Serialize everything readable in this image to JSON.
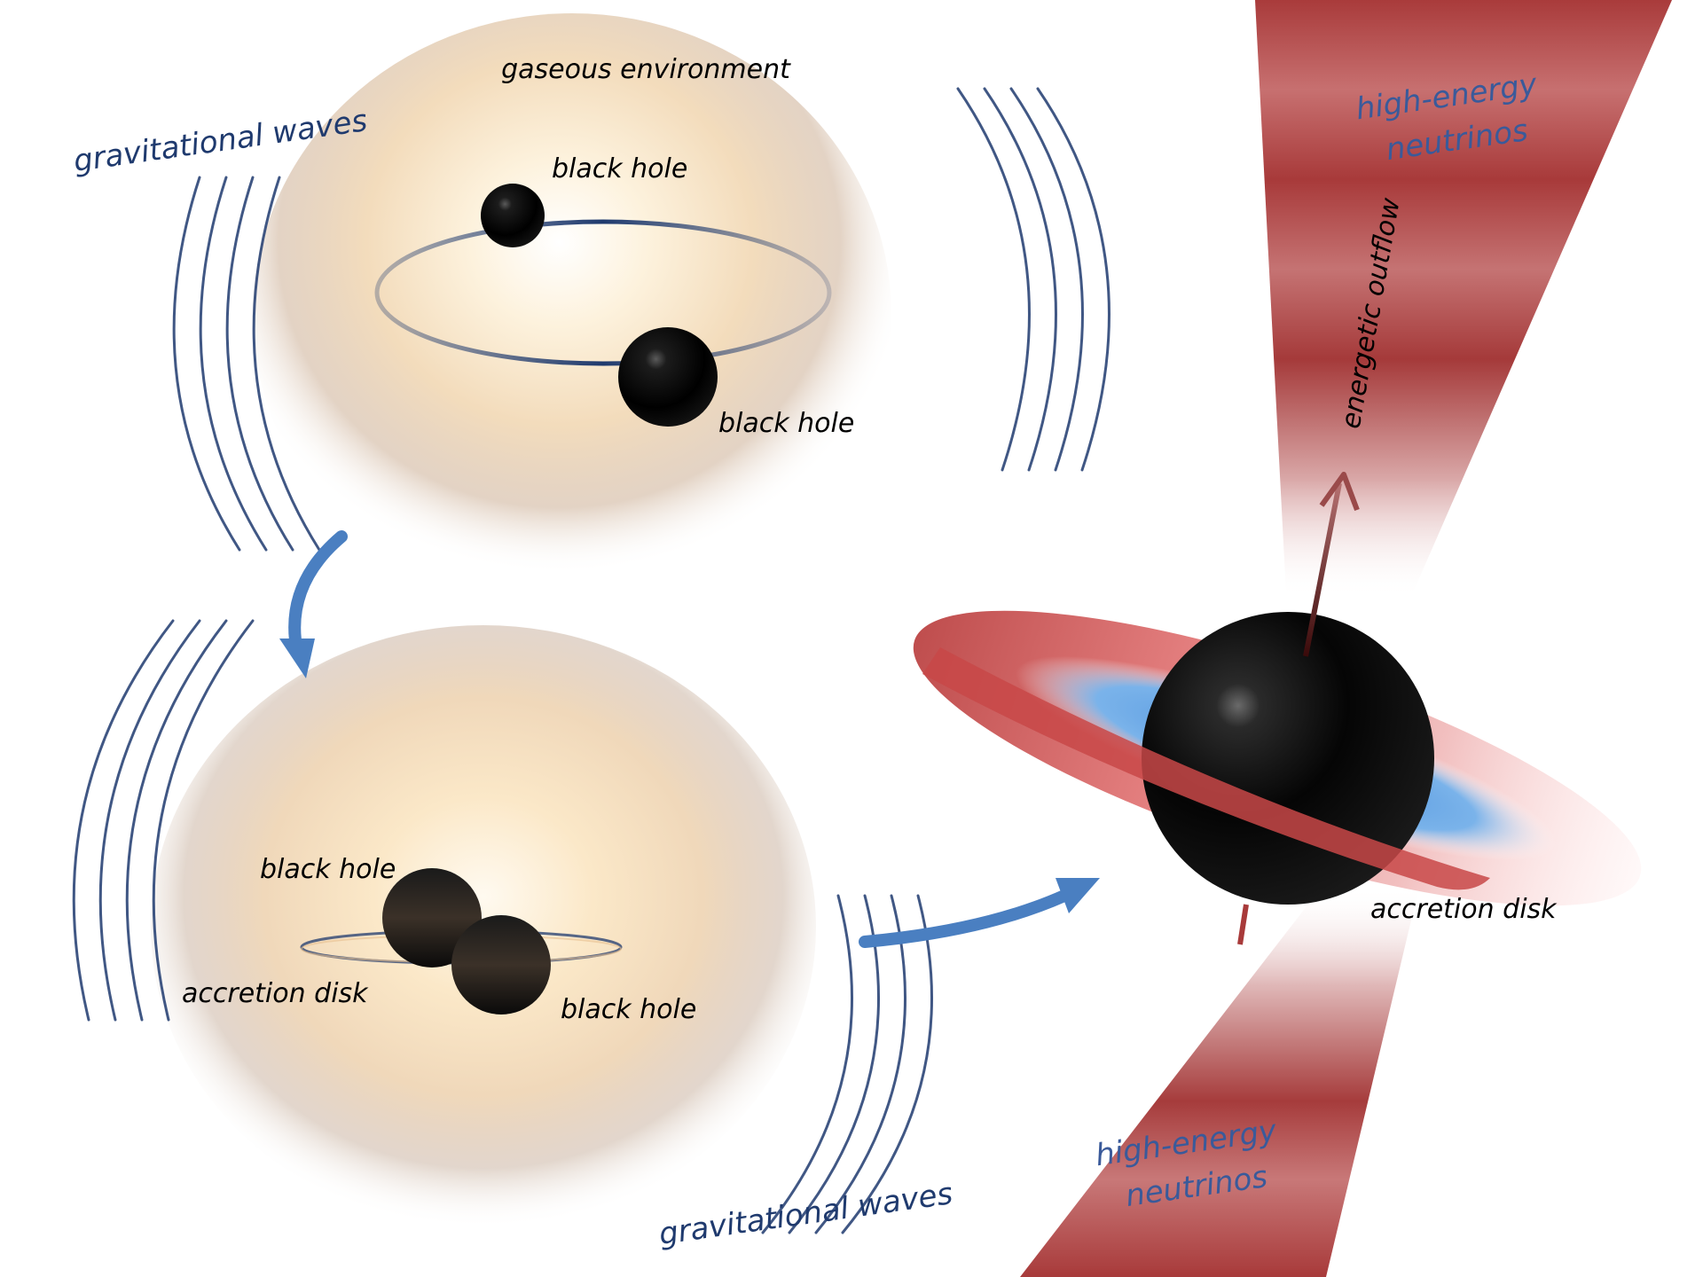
{
  "colors": {
    "wave_blue": "#1f3a6e",
    "flow_arrow_blue": "#4a7fc1",
    "jet_red": "#a83a3a",
    "disk_red": "#d24a4a",
    "disk_inner_blue": "#5b9ee0",
    "gas_glow": "#f6dcb2",
    "label_blue": "#1f3a6e"
  },
  "labels": {
    "gaseous_environment": "gaseous environment",
    "gravitational_waves_top": "gravitational waves",
    "gravitational_waves_bottom": "gravitational waves",
    "black_hole_top_1": "black hole",
    "black_hole_top_2": "black hole",
    "black_hole_bottom_1": "black hole",
    "black_hole_bottom_2": "black hole",
    "accretion_disk_left": "accretion disk",
    "accretion_disk_right": "accretion disk",
    "high_energy_top_line1": "high-energy",
    "high_energy_top_line2": "neutrinos",
    "high_energy_bottom_line1": "high-energy",
    "high_energy_bottom_line2": "neutrinos",
    "energetic_outflow": "energetic outflow"
  }
}
